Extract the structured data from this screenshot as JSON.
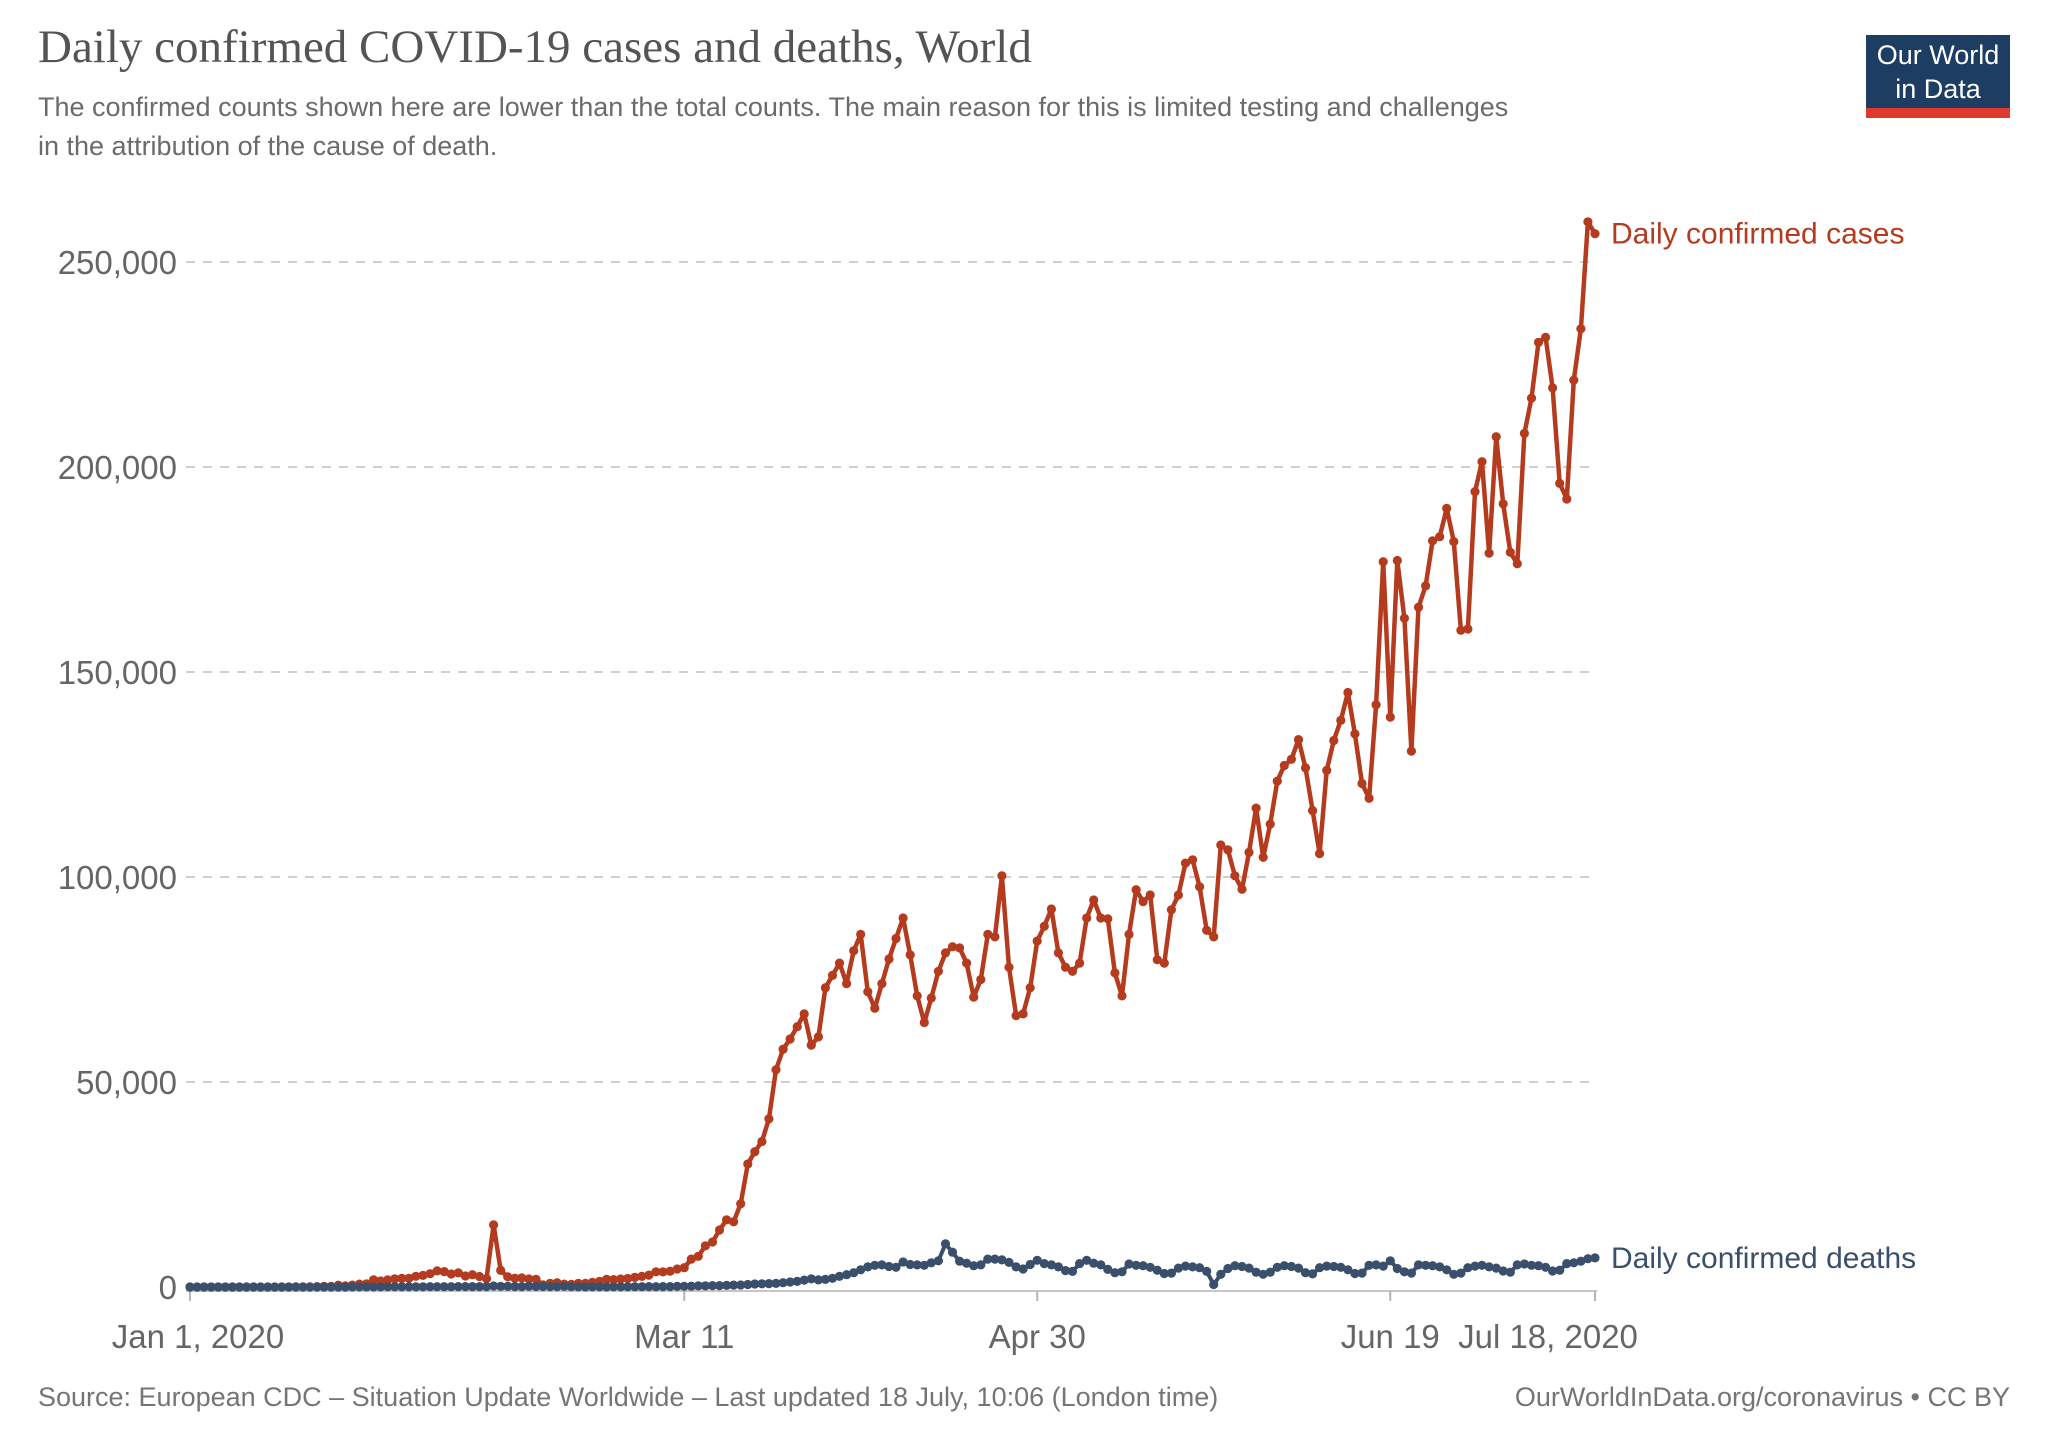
{
  "header": {
    "title": "Daily confirmed COVID-19 cases and deaths, World",
    "subtitle": "The confirmed counts shown here are lower than the total counts. The main reason for this is limited testing and challenges in the attribution of the cause of death."
  },
  "logo": {
    "line1": "Our World",
    "line2": "in Data",
    "bg_color": "#1d3d63",
    "accent_color": "#e0392e"
  },
  "footer": {
    "source": "Source: European CDC – Situation Update Worldwide – Last updated 18 July, 10:06 (London time)",
    "link": "OurWorldInData.org/coronavirus • CC BY"
  },
  "chart_data": {
    "type": "line",
    "title": "Daily confirmed COVID-19 cases and deaths, World",
    "x_unit": "date (daily, Jan 1 2020 – Jul 18 2020)",
    "x_range": [
      "Jan 1, 2020",
      "Jul 18, 2020"
    ],
    "ylim": [
      0,
      265000
    ],
    "grid": "horizontal dashed",
    "legend_position": "end-of-line labels, right side",
    "xticks": [
      {
        "day": 0,
        "label": "Jan 1, 2020",
        "label_dx": 8
      },
      {
        "day": 70,
        "label": "Mar 11",
        "label_dx": 0
      },
      {
        "day": 120,
        "label": "Apr 30",
        "label_dx": 0
      },
      {
        "day": 170,
        "label": "Jun 19",
        "label_dx": 0
      },
      {
        "day": 199,
        "label": "Jul 18, 2020",
        "label_dx": -47
      }
    ],
    "yticks": [
      {
        "value": 0,
        "label": "0"
      },
      {
        "value": 50000,
        "label": "50,000"
      },
      {
        "value": 100000,
        "label": "100,000"
      },
      {
        "value": 150000,
        "label": "150,000"
      },
      {
        "value": 200000,
        "label": "200,000"
      },
      {
        "value": 250000,
        "label": "250,000"
      }
    ],
    "series": [
      {
        "name": "Daily confirmed cases",
        "color": "#b53b1f",
        "values": [
          0,
          0,
          0,
          0,
          0,
          0,
          0,
          0,
          0,
          0,
          0,
          0,
          0,
          0,
          0,
          20,
          15,
          60,
          90,
          140,
          150,
          450,
          260,
          460,
          700,
          780,
          1750,
          1470,
          1740,
          1980,
          2100,
          2130,
          2600,
          2830,
          3240,
          3930,
          3750,
          3160,
          3440,
          2680,
          3000,
          2570,
          2060,
          15140,
          4060,
          2500,
          2150,
          2220,
          1940,
          1870,
          520,
          900,
          1050,
          700,
          630,
          870,
          890,
          1120,
          1380,
          1870,
          1810,
          1950,
          2080,
          2350,
          2590,
          2900,
          3700,
          3680,
          3850,
          4400,
          4700,
          6800,
          7500,
          10050,
          10980,
          13900,
          16400,
          15900,
          20300,
          30000,
          33000,
          35500,
          41000,
          53000,
          58000,
          60500,
          63500,
          66600,
          59000,
          61000,
          73000,
          76000,
          79000,
          74000,
          82000,
          86000,
          72000,
          68000,
          74000,
          80000,
          85000,
          90000,
          81000,
          71000,
          64500,
          70500,
          77000,
          81500,
          83000,
          82700,
          79000,
          70700,
          75000,
          86000,
          85400,
          100300,
          78000,
          66200,
          66600,
          73000,
          84400,
          88000,
          92200,
          81500,
          78000,
          77000,
          79000,
          90000,
          94400,
          90000,
          89800,
          76600,
          71000,
          86000,
          96900,
          94000,
          95600,
          79800,
          79000,
          92000,
          95600,
          103400,
          104200,
          97600,
          87000,
          85400,
          107800,
          106600,
          100300,
          97000,
          106000,
          116800,
          104800,
          112900,
          123400,
          127200,
          128700,
          133500,
          126600,
          116200,
          105700,
          126000,
          133300,
          138200,
          145000,
          134900,
          122800,
          119200,
          142000,
          176900,
          139000,
          177200,
          163100,
          130700,
          165800,
          171000,
          182000,
          183000,
          189900,
          181800,
          160200,
          160500,
          194000,
          201300,
          179000,
          207400,
          191000,
          179200,
          176400,
          208200,
          216800,
          230400,
          231600,
          219300,
          196000,
          192200,
          221200,
          233700,
          259800,
          256900
        ]
      },
      {
        "name": "Daily confirmed deaths",
        "color": "#3a4f6b",
        "values": [
          0,
          0,
          0,
          0,
          0,
          0,
          0,
          0,
          0,
          0,
          0,
          0,
          0,
          0,
          0,
          0,
          0,
          0,
          0,
          0,
          0,
          0,
          8,
          16,
          15,
          25,
          26,
          26,
          38,
          43,
          46,
          45,
          46,
          45,
          65,
          66,
          72,
          73,
          86,
          89,
          97,
          108,
          97,
          254,
          144,
          142,
          105,
          98,
          136,
          114,
          110,
          109,
          97,
          150,
          71,
          52,
          35,
          44,
          47,
          35,
          54,
          50,
          58,
          72,
          75,
          87,
          71,
          98,
          102,
          140,
          172,
          198,
          269,
          277,
          335,
          343,
          396,
          464,
          494,
          601,
          743,
          780,
          821,
          872,
          1060,
          1221,
          1369,
          1690,
          1980,
          1720,
          1860,
          2120,
          2600,
          3000,
          3500,
          4200,
          4900,
          5300,
          5400,
          5000,
          4800,
          6100,
          5500,
          5400,
          5300,
          5900,
          6400,
          10520,
          8500,
          6300,
          5800,
          5200,
          5400,
          6800,
          6800,
          6600,
          6000,
          4900,
          4400,
          5500,
          6500,
          5700,
          5400,
          4900,
          4000,
          3800,
          5700,
          6500,
          5800,
          5400,
          4300,
          3500,
          3700,
          5600,
          5300,
          5200,
          4800,
          4100,
          3300,
          3400,
          4600,
          5100,
          4900,
          4700,
          3800,
          600,
          3100,
          4500,
          5200,
          5000,
          4600,
          3600,
          3100,
          3600,
          4800,
          5200,
          5000,
          4600,
          3500,
          3200,
          4700,
          5100,
          5000,
          4800,
          4200,
          3300,
          3400,
          5300,
          5400,
          5100,
          6400,
          4500,
          3700,
          3400,
          5400,
          5300,
          5200,
          4900,
          4200,
          3100,
          3400,
          4700,
          5100,
          5300,
          4900,
          4600,
          3900,
          3600,
          5400,
          5600,
          5300,
          5200,
          4800,
          3900,
          4100,
          5700,
          5900,
          6300,
          6900,
          7100
        ]
      }
    ]
  }
}
